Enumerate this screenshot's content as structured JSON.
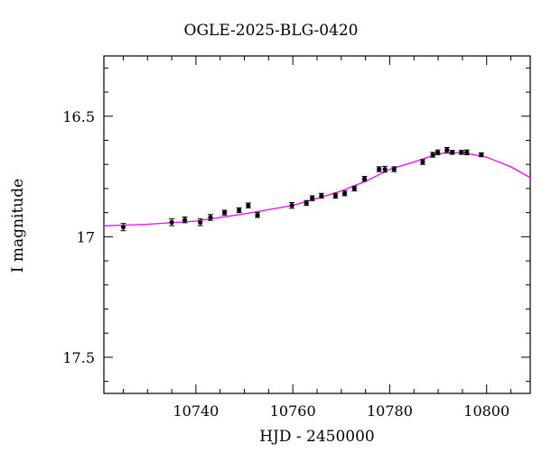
{
  "chart_data": {
    "type": "scatter",
    "title": "OGLE-2025-BLG-0420",
    "xlabel": "HJD - 2450000",
    "ylabel": "I magnitude",
    "xlim": [
      10721,
      10809
    ],
    "ylim": [
      17.65,
      16.25
    ],
    "y_inverted": true,
    "x_ticks": [
      10740,
      10760,
      10780,
      10800
    ],
    "x_tick_labels": [
      "10740",
      "10760",
      "10780",
      "10800"
    ],
    "y_ticks": [
      16.5,
      17,
      17.5
    ],
    "y_tick_labels": [
      "16.5",
      "17",
      "17.5"
    ],
    "grid": false,
    "legend": "none",
    "colors": {
      "points": "#000000",
      "model": "#ff00ff",
      "frame": "#000000"
    },
    "series": [
      {
        "type": "scatter",
        "points": [
          {
            "x": 10725.0,
            "y": 16.96,
            "err": 0.015
          },
          {
            "x": 10735.0,
            "y": 16.94,
            "err": 0.014
          },
          {
            "x": 10737.7,
            "y": 16.93,
            "err": 0.012
          },
          {
            "x": 10740.9,
            "y": 16.94,
            "err": 0.014
          },
          {
            "x": 10743.0,
            "y": 16.92,
            "err": 0.012
          },
          {
            "x": 10745.9,
            "y": 16.9,
            "err": 0.01
          },
          {
            "x": 10748.9,
            "y": 16.89,
            "err": 0.01
          },
          {
            "x": 10750.8,
            "y": 16.87,
            "err": 0.01
          },
          {
            "x": 10752.7,
            "y": 16.91,
            "err": 0.01
          },
          {
            "x": 10759.8,
            "y": 16.87,
            "err": 0.012
          },
          {
            "x": 10762.8,
            "y": 16.86,
            "err": 0.01
          },
          {
            "x": 10764.0,
            "y": 16.84,
            "err": 0.01
          },
          {
            "x": 10765.9,
            "y": 16.83,
            "err": 0.01
          },
          {
            "x": 10768.8,
            "y": 16.83,
            "err": 0.01
          },
          {
            "x": 10770.7,
            "y": 16.82,
            "err": 0.01
          },
          {
            "x": 10772.7,
            "y": 16.8,
            "err": 0.01
          },
          {
            "x": 10774.8,
            "y": 16.76,
            "err": 0.01
          },
          {
            "x": 10777.8,
            "y": 16.72,
            "err": 0.01
          },
          {
            "x": 10779.0,
            "y": 16.72,
            "err": 0.012
          },
          {
            "x": 10780.9,
            "y": 16.72,
            "err": 0.01
          },
          {
            "x": 10786.8,
            "y": 16.69,
            "err": 0.01
          },
          {
            "x": 10788.9,
            "y": 16.66,
            "err": 0.01
          },
          {
            "x": 10789.9,
            "y": 16.65,
            "err": 0.01
          },
          {
            "x": 10791.8,
            "y": 16.64,
            "err": 0.01
          },
          {
            "x": 10792.9,
            "y": 16.65,
            "err": 0.008
          },
          {
            "x": 10794.8,
            "y": 16.65,
            "err": 0.008
          },
          {
            "x": 10795.9,
            "y": 16.65,
            "err": 0.01
          },
          {
            "x": 10798.9,
            "y": 16.66,
            "err": 0.008
          }
        ]
      },
      {
        "type": "line",
        "points": [
          {
            "x": 10721,
            "y": 16.955
          },
          {
            "x": 10730,
            "y": 16.948
          },
          {
            "x": 10740,
            "y": 16.935
          },
          {
            "x": 10750,
            "y": 16.905
          },
          {
            "x": 10760,
            "y": 16.87
          },
          {
            "x": 10766,
            "y": 16.835
          },
          {
            "x": 10770,
            "y": 16.81
          },
          {
            "x": 10775,
            "y": 16.77
          },
          {
            "x": 10780,
            "y": 16.72
          },
          {
            "x": 10785,
            "y": 16.69
          },
          {
            "x": 10790,
            "y": 16.655
          },
          {
            "x": 10795,
            "y": 16.65
          },
          {
            "x": 10800,
            "y": 16.67
          },
          {
            "x": 10805,
            "y": 16.71
          },
          {
            "x": 10809,
            "y": 16.755
          }
        ]
      }
    ]
  }
}
